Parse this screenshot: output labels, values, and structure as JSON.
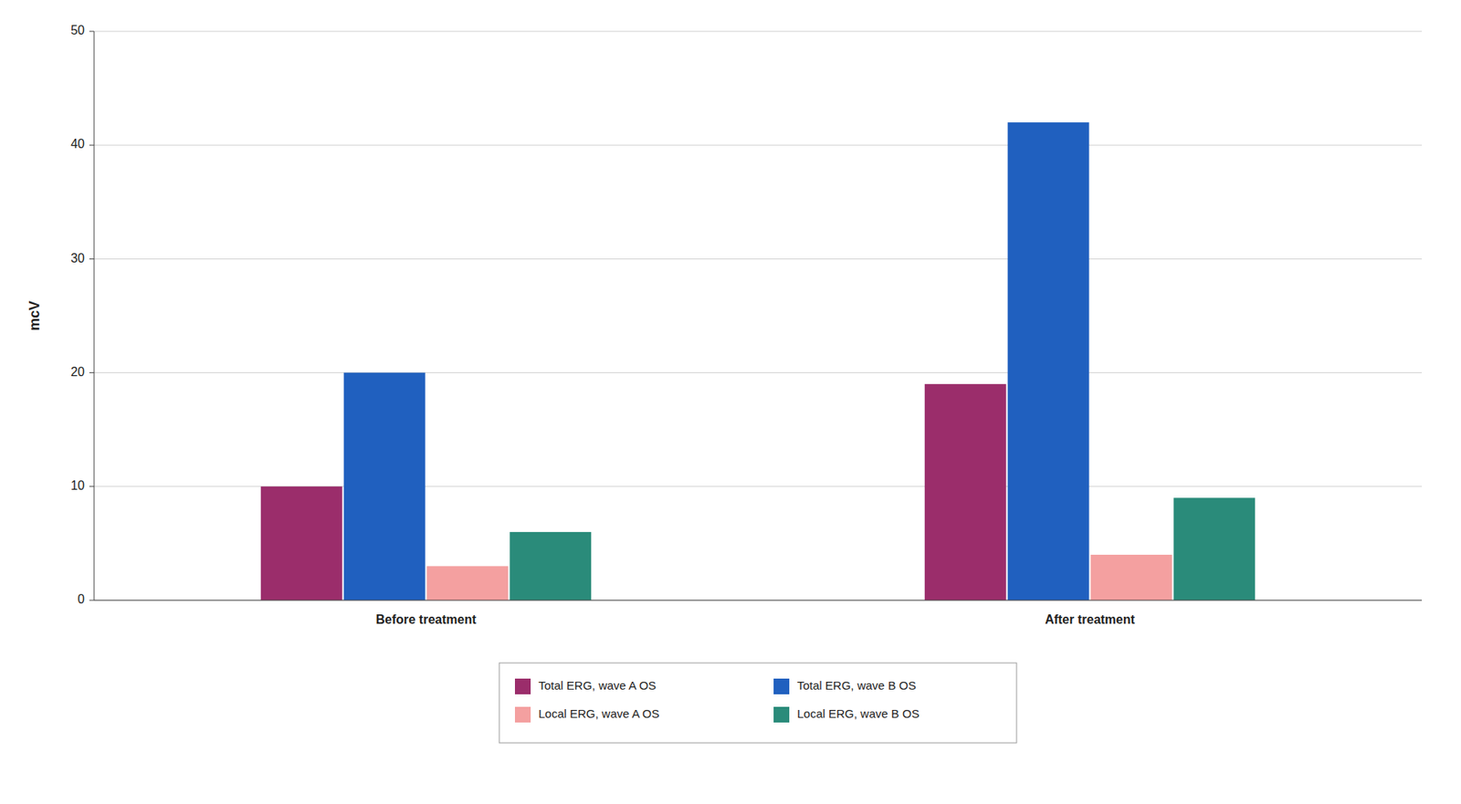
{
  "chart_data": {
    "type": "bar",
    "categories": [
      "Before treatment",
      "After treatment"
    ],
    "series": [
      {
        "name": "Total ERG, wave A OS",
        "color": "#9B2D6B",
        "values": [
          10,
          19
        ]
      },
      {
        "name": "Total ERG, wave B OS",
        "color": "#2060BF",
        "values": [
          20,
          42
        ]
      },
      {
        "name": "Local ERG, wave A OS",
        "color": "#F4A0A0",
        "values": [
          3,
          4
        ]
      },
      {
        "name": "Local ERG, wave B OS",
        "color": "#2A8B7A",
        "values": [
          6,
          9
        ]
      }
    ],
    "y_label": "mcV",
    "ylim": [
      0,
      50
    ],
    "yticks": [
      0,
      10,
      20,
      30,
      40,
      50
    ],
    "grid": true,
    "legend": "bottom"
  }
}
